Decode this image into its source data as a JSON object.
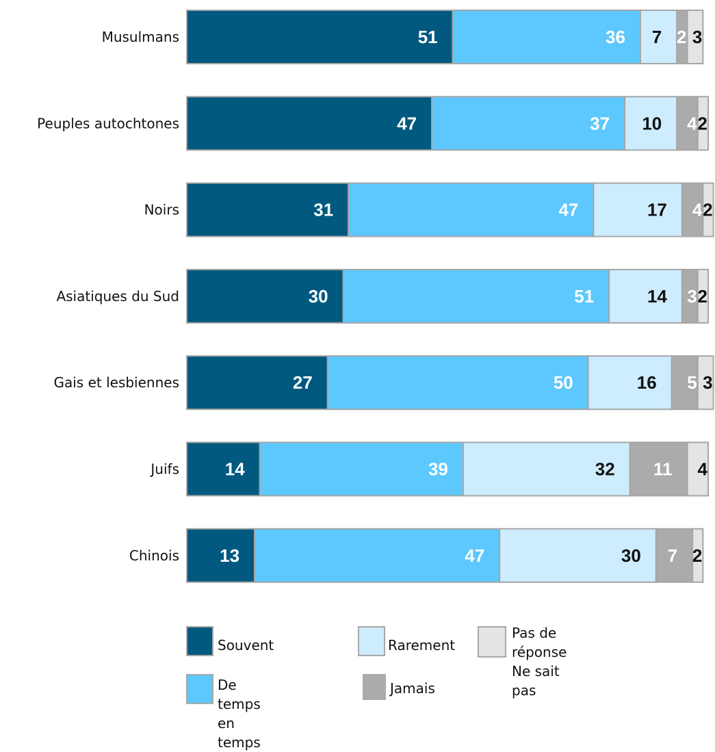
{
  "chart_data": {
    "type": "bar",
    "orientation": "horizontal",
    "stacked": true,
    "categories": [
      "Musulmans",
      "Peuples autochtones",
      "Noirs",
      "Asiatiques du Sud",
      "Gais et lesbiennes",
      "Juifs",
      "Chinois"
    ],
    "series": [
      {
        "name": "Souvent",
        "color": "#02597f",
        "label_color": "#ffffff",
        "values": [
          51,
          47,
          31,
          30,
          27,
          14,
          13
        ]
      },
      {
        "name": "De temps en temps",
        "color": "#5cc8fd",
        "label_color": "#ffffff",
        "values": [
          36,
          37,
          47,
          51,
          50,
          39,
          47
        ]
      },
      {
        "name": "Rarement",
        "color": "#cdecfd",
        "label_color": "#111111",
        "values": [
          7,
          10,
          17,
          14,
          16,
          32,
          30
        ]
      },
      {
        "name": "Jamais",
        "color": "#ababab",
        "label_color": "#ffffff",
        "values": [
          2,
          4,
          4,
          3,
          5,
          11,
          7
        ]
      },
      {
        "name": "Pas de réponse Ne sait pas",
        "color": "#e4e4e4",
        "label_color": "#111111",
        "values": [
          3,
          2,
          2,
          2,
          3,
          4,
          2
        ]
      }
    ],
    "xlim": [
      0,
      100
    ],
    "grid": false,
    "legend_position": "bottom",
    "title": "",
    "xlabel": "",
    "ylabel": ""
  },
  "legend": {
    "souvent": "Souvent",
    "de_temps_en_temps_1": "De temps en",
    "de_temps_en_temps_2": "temps",
    "rarement": "Rarement",
    "jamais": "Jamais",
    "pas_de_reponse": "Pas de réponse",
    "ne_sait_pas": "Ne sait pas"
  }
}
